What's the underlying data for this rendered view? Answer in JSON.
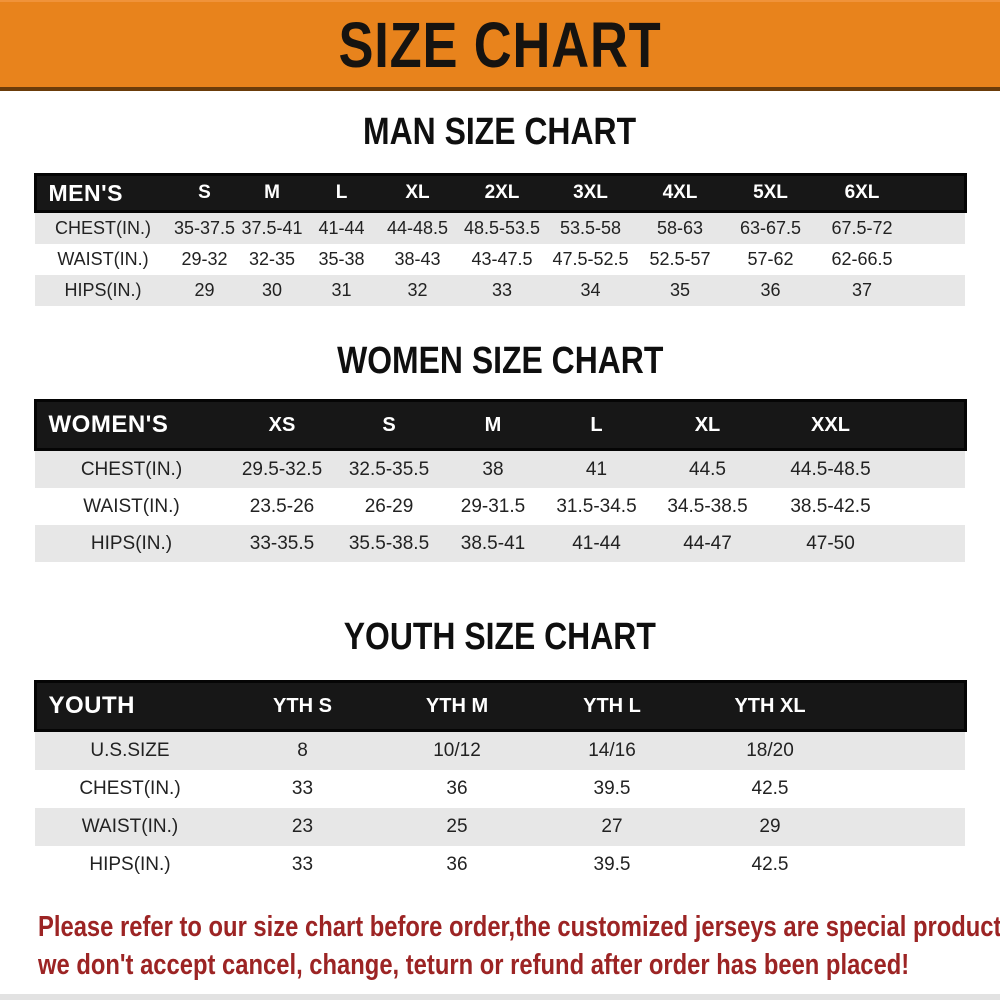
{
  "banner": {
    "title": "SIZE CHART"
  },
  "men": {
    "heading": "MAN SIZE CHART",
    "table": {
      "label": "MEN'S",
      "sizes": [
        "S",
        "M",
        "L",
        "XL",
        "2XL",
        "3XL",
        "4XL",
        "5XL",
        "6XL"
      ],
      "rows": [
        {
          "label": "CHEST(IN.)",
          "values": [
            "35-37.5",
            "37.5-41",
            "41-44",
            "44-48.5",
            "48.5-53.5",
            "53.5-58",
            "58-63",
            "63-67.5",
            "67.5-72"
          ]
        },
        {
          "label": "WAIST(IN.)",
          "values": [
            "29-32",
            "32-35",
            "35-38",
            "38-43",
            "43-47.5",
            "47.5-52.5",
            "52.5-57",
            "57-62",
            "62-66.5"
          ]
        },
        {
          "label": "HIPS(IN.)",
          "values": [
            "29",
            "30",
            "31",
            "32",
            "33",
            "34",
            "35",
            "36",
            "37"
          ]
        }
      ]
    }
  },
  "women": {
    "heading": "WOMEN SIZE CHART",
    "table": {
      "label": "WOMEN'S",
      "sizes": [
        "XS",
        "S",
        "M",
        "L",
        "XL",
        "XXL"
      ],
      "rows": [
        {
          "label": "CHEST(IN.)",
          "values": [
            "29.5-32.5",
            "32.5-35.5",
            "38",
            "41",
            "44.5",
            "44.5-48.5"
          ]
        },
        {
          "label": "WAIST(IN.)",
          "values": [
            "23.5-26",
            "26-29",
            "29-31.5",
            "31.5-34.5",
            "34.5-38.5",
            "38.5-42.5"
          ]
        },
        {
          "label": "HIPS(IN.)",
          "values": [
            "33-35.5",
            "35.5-38.5",
            "38.5-41",
            "41-44",
            "44-47",
            "47-50"
          ]
        }
      ]
    }
  },
  "youth": {
    "heading": "YOUTH SIZE CHART",
    "table": {
      "label": "YOUTH",
      "sizes": [
        "YTH S",
        "YTH M",
        "YTH L",
        "YTH XL"
      ],
      "rows": [
        {
          "label": "U.S.SIZE",
          "values": [
            "8",
            "10/12",
            "14/16",
            "18/20"
          ]
        },
        {
          "label": "CHEST(IN.)",
          "values": [
            "33",
            "36",
            "39.5",
            "42.5"
          ]
        },
        {
          "label": "WAIST(IN.)",
          "values": [
            "23",
            "25",
            "27",
            "29"
          ]
        },
        {
          "label": "HIPS(IN.)",
          "values": [
            "33",
            "36",
            "39.5",
            "42.5"
          ]
        }
      ]
    }
  },
  "disclaimer": {
    "line1": "Please refer to our size chart before order,the customized jerseys are special products,",
    "line2": "we don't accept cancel, change, teturn or refund after order has been placed!"
  },
  "colors": {
    "banner_bg": "#e8831c",
    "table_header_bg": "#171717",
    "row_alt_bg": "#e7e7e7",
    "disclaimer_text": "#9c2424"
  }
}
